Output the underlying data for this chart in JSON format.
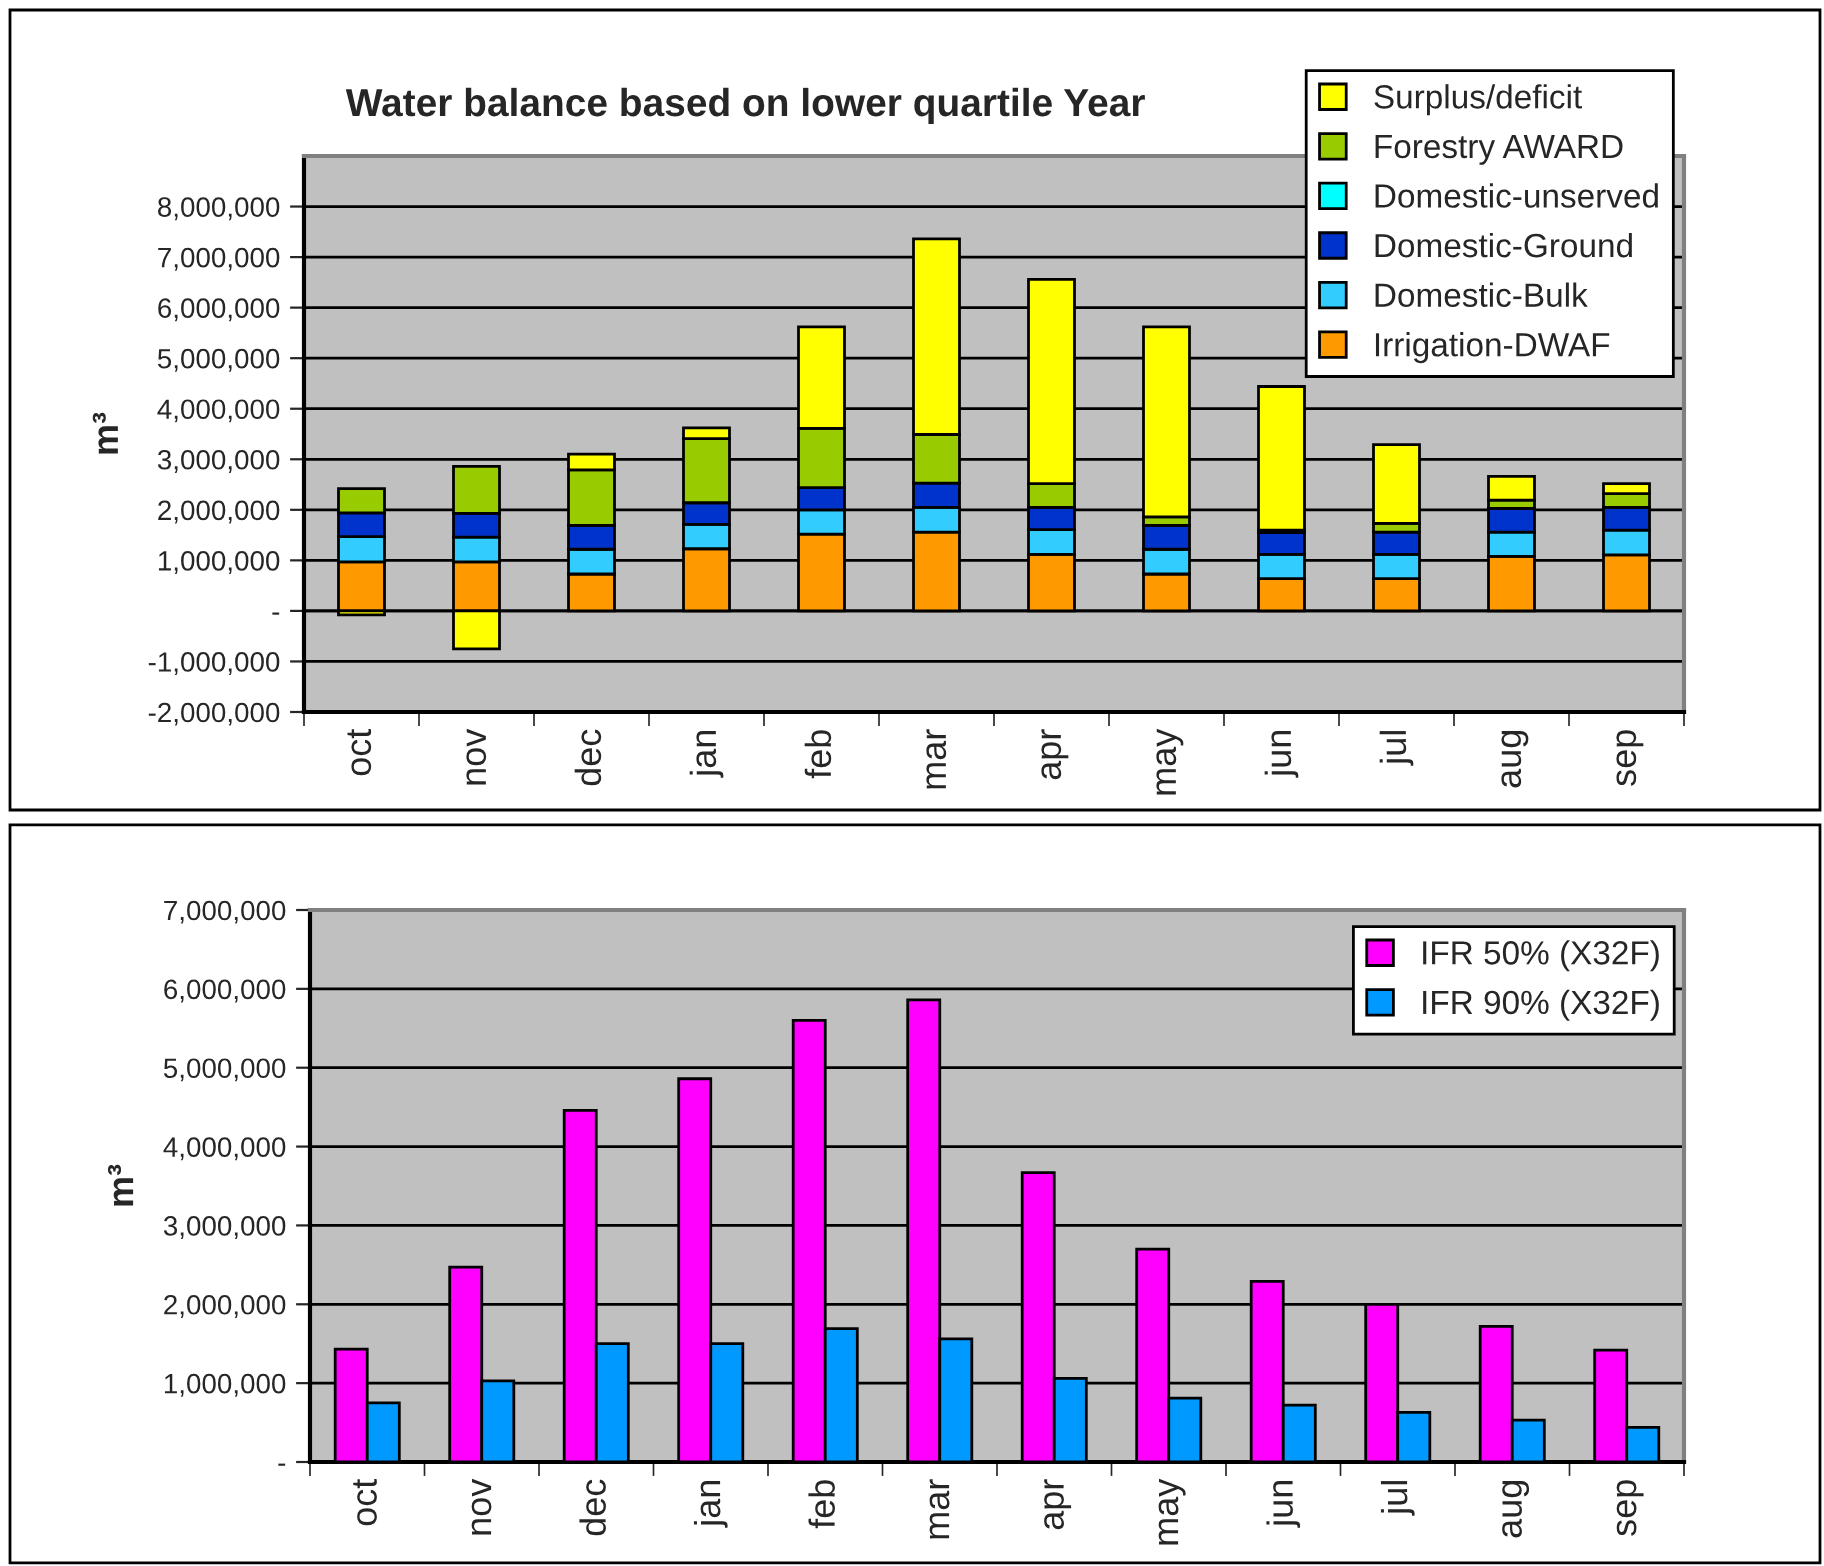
{
  "chart_data": [
    {
      "type": "bar",
      "title": "Water balance based on lower quartile Year",
      "ylabel": "m³",
      "stacked": true,
      "grid": "y",
      "legend": "top right",
      "categories": [
        "oct",
        "nov",
        "dec",
        "jan",
        "feb",
        "mar",
        "apr",
        "may",
        "jun",
        "jul",
        "aug",
        "sep"
      ],
      "series": [
        {
          "name": "Irrigation-DWAF",
          "color": "#ff9900",
          "values": [
            970000,
            970000,
            730000,
            1230000,
            1520000,
            1560000,
            1120000,
            730000,
            640000,
            640000,
            1080000,
            1110000
          ]
        },
        {
          "name": "Domestic-Bulk",
          "color": "#33ccff",
          "values": [
            500000,
            490000,
            490000,
            480000,
            480000,
            490000,
            490000,
            490000,
            480000,
            480000,
            480000,
            490000
          ]
        },
        {
          "name": "Domestic-Ground",
          "color": "#0033cc",
          "values": [
            470000,
            470000,
            470000,
            430000,
            440000,
            480000,
            440000,
            470000,
            430000,
            440000,
            470000,
            450000
          ]
        },
        {
          "name": "Domestic-unserved",
          "color": "#00ffff",
          "values": [
            0,
            0,
            0,
            0,
            0,
            0,
            0,
            0,
            0,
            0,
            0,
            0
          ]
        },
        {
          "name": "Forestry AWARD",
          "color": "#99cc00",
          "values": [
            480000,
            930000,
            1100000,
            1270000,
            1170000,
            960000,
            470000,
            170000,
            50000,
            170000,
            160000,
            270000
          ]
        },
        {
          "name": "Surplus/deficit",
          "color": "#ffff00",
          "values": [
            -80000,
            -750000,
            310000,
            210000,
            2010000,
            3870000,
            4040000,
            3760000,
            2840000,
            1560000,
            470000,
            200000
          ]
        }
      ],
      "ylim": [
        -2000000,
        9000000
      ],
      "yticks": [
        {
          "value": -2000000,
          "label": "-2,000,000"
        },
        {
          "value": -1000000,
          "label": "-1,000,000"
        },
        {
          "value": 0,
          "label": "-"
        },
        {
          "value": 1000000,
          "label": "1,000,000"
        },
        {
          "value": 2000000,
          "label": "2,000,000"
        },
        {
          "value": 3000000,
          "label": "3,000,000"
        },
        {
          "value": 4000000,
          "label": "4,000,000"
        },
        {
          "value": 5000000,
          "label": "5,000,000"
        },
        {
          "value": 6000000,
          "label": "6,000,000"
        },
        {
          "value": 7000000,
          "label": "7,000,000"
        },
        {
          "value": 8000000,
          "label": "8,000,000"
        }
      ]
    },
    {
      "type": "bar",
      "ylabel": "m³",
      "grid": "y",
      "legend": "top right",
      "categories": [
        "oct",
        "nov",
        "dec",
        "jan",
        "feb",
        "mar",
        "apr",
        "may",
        "jun",
        "jul",
        "aug",
        "sep"
      ],
      "series": [
        {
          "name": "IFR 50% (X32F)",
          "color": "#ff00ff",
          "values": [
            1430000,
            2470000,
            4460000,
            4860000,
            5600000,
            5860000,
            3670000,
            2700000,
            2290000,
            2000000,
            1720000,
            1420000
          ]
        },
        {
          "name": "IFR 90% (X32F)",
          "color": "#0099ff",
          "values": [
            750000,
            1030000,
            1500000,
            1500000,
            1690000,
            1560000,
            1060000,
            810000,
            720000,
            630000,
            530000,
            440000
          ]
        }
      ],
      "ylim": [
        0,
        7000000
      ],
      "yticks": [
        {
          "value": 0,
          "label": "-"
        },
        {
          "value": 1000000,
          "label": "1,000,000"
        },
        {
          "value": 2000000,
          "label": "2,000,000"
        },
        {
          "value": 3000000,
          "label": "3,000,000"
        },
        {
          "value": 4000000,
          "label": "4,000,000"
        },
        {
          "value": 5000000,
          "label": "5,000,000"
        },
        {
          "value": 6000000,
          "label": "6,000,000"
        },
        {
          "value": 7000000,
          "label": "7,000,000"
        }
      ]
    }
  ]
}
